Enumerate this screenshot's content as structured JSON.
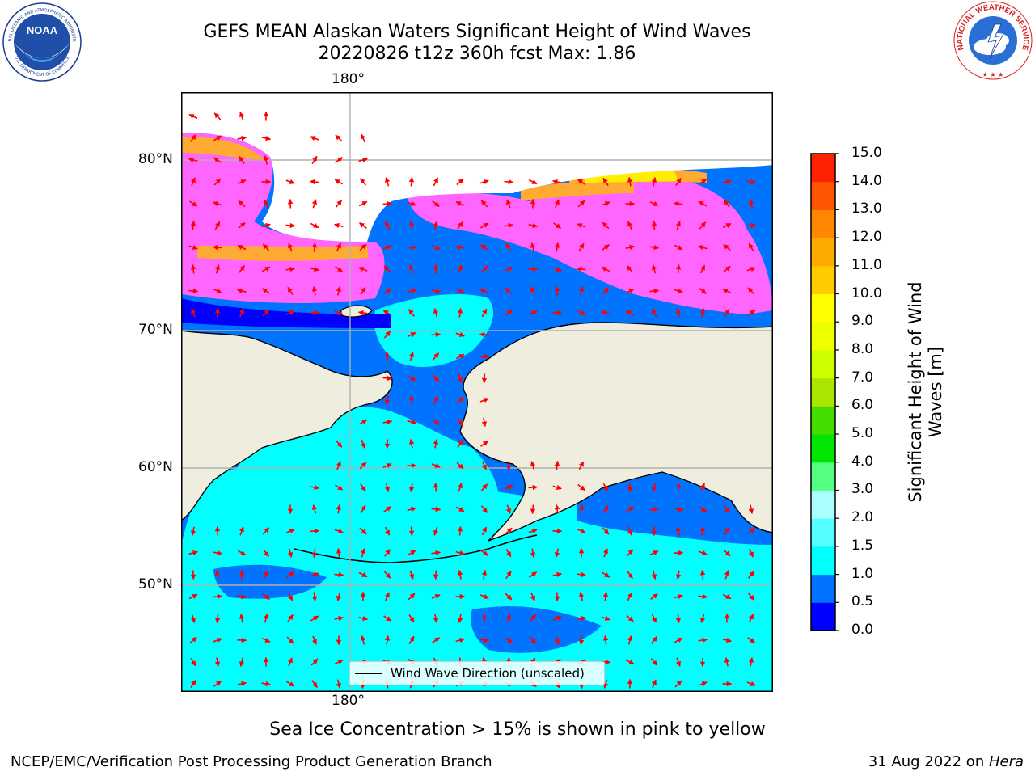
{
  "title": {
    "line1": "GEFS MEAN Alaskan Waters Significant Height of Wind Waves",
    "line2": "20220826 t12z 360h fcst   Max: 1.86"
  },
  "map": {
    "top_lon_label": "180°",
    "bottom_lon_label": "180°",
    "lat_labels": [
      "80°N",
      "70°N",
      "60°N",
      "50°N"
    ],
    "legend_label": "Wind Wave Direction (unscaled)",
    "arrow_color": "#ff0000",
    "land_color": "#efedde",
    "ocean_colors": {
      "low": "#0073ff",
      "mid": "#00ffff",
      "deep": "#0000ff"
    },
    "ice_colors": {
      "pink": "#ff66ff",
      "orange": "#ffaa33",
      "yellow": "#ffee00"
    }
  },
  "colorbar": {
    "label_line1": "Significant Height of Wind",
    "label_line2": "Waves [m]",
    "ticks": [
      "0.0",
      "0.5",
      "1.0",
      "1.5",
      "2.0",
      "3.0",
      "4.0",
      "5.0",
      "6.0",
      "7.0",
      "8.0",
      "9.0",
      "10.0",
      "11.0",
      "12.0",
      "13.0",
      "14.0",
      "15.0"
    ],
    "colors": [
      "#0000ff",
      "#0073ff",
      "#00ffff",
      "#55ffff",
      "#aaffff",
      "#55ff7f",
      "#00e600",
      "#44dd00",
      "#aae600",
      "#ccff00",
      "#eeff00",
      "#ffff00",
      "#ffcc00",
      "#ffaa00",
      "#ff8800",
      "#ff5500",
      "#ff2200"
    ]
  },
  "caption": "Sea Ice Concentration > 15% is shown in pink to yellow",
  "footer": {
    "left": "NCEP/EMC/Verification Post Processing Product Generation Branch",
    "right_date": "31 Aug 2022 on ",
    "right_host": "Hera"
  },
  "logos": {
    "noaa_text": "NOAA",
    "noaa_ring": "NATIONAL OCEANIC AND ATMOSPHERIC ADMINISTRATION",
    "noaa_ring_bottom": "U.S. DEPARTMENT OF COMMERCE",
    "nws_ring": "NATIONAL WEATHER SERVICE"
  }
}
